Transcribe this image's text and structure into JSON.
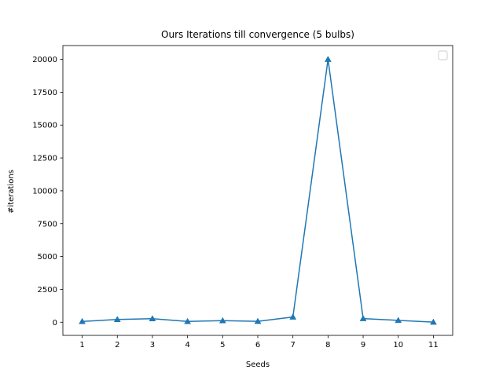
{
  "chart_data": {
    "type": "line",
    "title": "Ours Iterations till convergence (5 bulbs)",
    "xlabel": "Seeds",
    "ylabel": "#iterations",
    "x": [
      1,
      2,
      3,
      4,
      5,
      6,
      7,
      8,
      9,
      10,
      11
    ],
    "series": [
      {
        "values": [
          60,
          210,
          270,
          60,
          120,
          70,
          400,
          20000,
          280,
          140,
          10
        ],
        "color": "#1f77b4",
        "marker": "triangle"
      }
    ],
    "xlim": [
      0.45,
      11.55
    ],
    "ylim": [
      -999.5,
      21049.5
    ],
    "xticks": [
      "1",
      "2",
      "3",
      "4",
      "5",
      "6",
      "7",
      "8",
      "9",
      "10",
      "11"
    ],
    "yticks": [
      "0",
      "2500",
      "5000",
      "7500",
      "10000",
      "12500",
      "15000",
      "17500",
      "20000"
    ],
    "legend": {
      "placement": "top-right",
      "entries": []
    },
    "grid": false
  }
}
